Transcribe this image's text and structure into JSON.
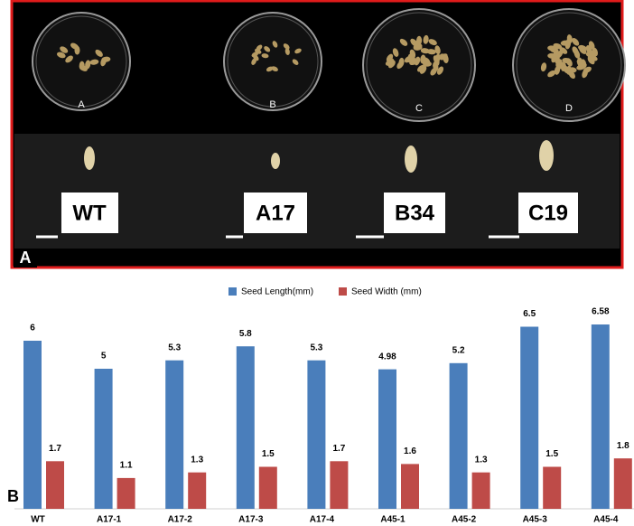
{
  "panel_a": {
    "label": "A",
    "dishes": [
      "A",
      "B",
      "C",
      "D"
    ],
    "lines": [
      "WT",
      "A17",
      "B34",
      "C19"
    ]
  },
  "chart_data": {
    "type": "bar",
    "label": "B",
    "categories": [
      "WT",
      "A17-1",
      "A17-2",
      "A17-3",
      "A17-4",
      "A45-1",
      "A45-2",
      "A45-3",
      "A45-4"
    ],
    "series": [
      {
        "name": "Seed Length(mm)",
        "color": "#4a7ebb",
        "values": [
          6,
          5,
          5.3,
          5.8,
          5.3,
          4.98,
          5.2,
          6.5,
          6.58
        ]
      },
      {
        "name": "Seed Width (mm)",
        "color": "#be4b48",
        "values": [
          1.7,
          1.1,
          1.3,
          1.5,
          1.7,
          1.6,
          1.3,
          1.5,
          1.8
        ]
      }
    ]
  }
}
